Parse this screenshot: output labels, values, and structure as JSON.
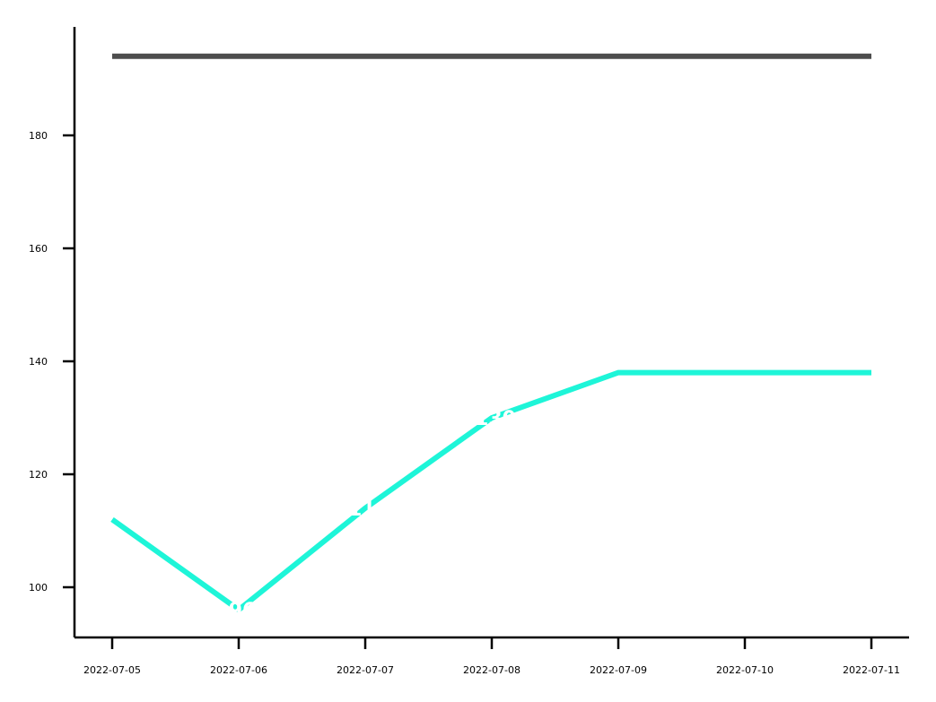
{
  "chart_data": {
    "type": "line",
    "title": "",
    "xlabel": "",
    "ylabel": "",
    "x": [
      "2022-07-05",
      "2022-07-06",
      "2022-07-07",
      "2022-07-08",
      "2022-07-09",
      "2022-07-10",
      "2022-07-11"
    ],
    "series": [
      {
        "values": [
          194,
          194,
          194,
          194,
          194,
          194,
          194
        ],
        "color": "#4d4d4d"
      },
      {
        "values": [
          112,
          96,
          114,
          130,
          138,
          138,
          138
        ],
        "color": "#1ef5d8"
      }
    ],
    "data_labels": [
      {
        "series": 1,
        "index": 1,
        "text": "96"
      },
      {
        "series": 1,
        "index": 2,
        "text": "114"
      },
      {
        "series": 1,
        "index": 3,
        "text": "130"
      }
    ],
    "yticks": [
      100,
      120,
      140,
      160,
      180
    ],
    "ylim": [
      91,
      204
    ],
    "grid": false,
    "legend": "none"
  }
}
